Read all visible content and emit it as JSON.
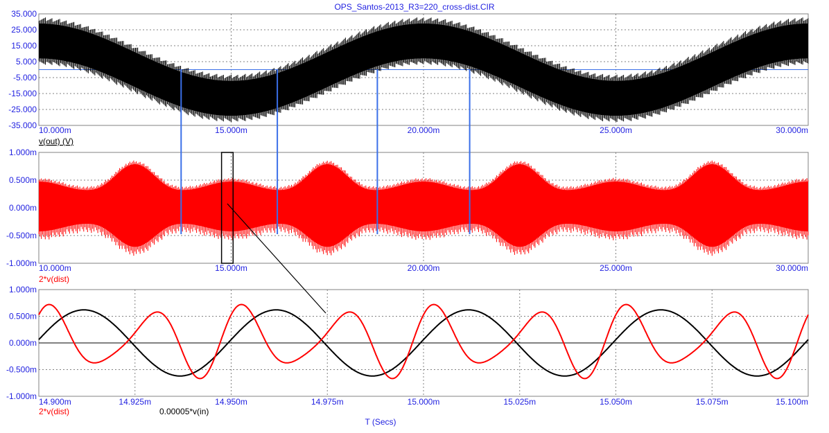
{
  "title": "OPS_Santos-2013_R3=220_cross-dist.CIR",
  "xaxis_label": "T (Secs)",
  "colors": {
    "tick": "#1f1fe0",
    "grid": "#808080",
    "black_trace": "#000000",
    "red_trace": "#ff0000",
    "marker": "#3a6fe8"
  },
  "chart_data": [
    {
      "type": "line",
      "panel": "top",
      "series": [
        {
          "name": "v(out) (V)",
          "color": "#000000"
        }
      ],
      "series_label": "v(out) (V)",
      "xlim": [
        0.01,
        0.03
      ],
      "ylim": [
        -35,
        35
      ],
      "xticks": [
        "10.000m",
        "15.000m",
        "20.000m",
        "25.000m",
        "30.000m"
      ],
      "yticks": [
        "35.000",
        "25.000",
        "15.000",
        "5.000",
        "-5.000",
        "-15.000",
        "-25.000",
        "-35.000"
      ],
      "signal": {
        "carrier_envelope_center_amplitude": 18,
        "band_halfwidth": 11,
        "low_freq_hz": 100
      },
      "grid": true
    },
    {
      "type": "line",
      "panel": "middle",
      "series": [
        {
          "name": "2*v(dist)",
          "color": "#ff0000"
        }
      ],
      "series_label": "2*v(dist)",
      "xlim": [
        0.01,
        0.03
      ],
      "ylim": [
        -1.0,
        1.0
      ],
      "xticks": [
        "10.000m",
        "15.000m",
        "20.000m",
        "25.000m",
        "30.000m"
      ],
      "yticks": [
        "1.000m",
        "0.500m",
        "0.000m",
        "-0.500m",
        "-1.000m"
      ],
      "grid": true
    },
    {
      "type": "line",
      "panel": "bottom",
      "series": [
        {
          "name": "2*v(dist)",
          "color": "#ff0000"
        },
        {
          "name": "0.00005*v(in)",
          "color": "#000000"
        }
      ],
      "xlim": [
        0.0149,
        0.0151
      ],
      "ylim": [
        -1.0,
        1.0
      ],
      "xticks": [
        "14.900m",
        "14.925m",
        "14.950m",
        "14.975m",
        "15.000m",
        "15.025m",
        "15.050m",
        "15.075m",
        "15.100m"
      ],
      "yticks": [
        "1.000m",
        "0.500m",
        "0.000m",
        "-0.500m",
        "-1.000m"
      ],
      "grid": true
    }
  ],
  "markers_x_ms": [
    13.7,
    16.2,
    18.8,
    21.2
  ],
  "zoom_box_x_ms": [
    14.75,
    15.05
  ]
}
